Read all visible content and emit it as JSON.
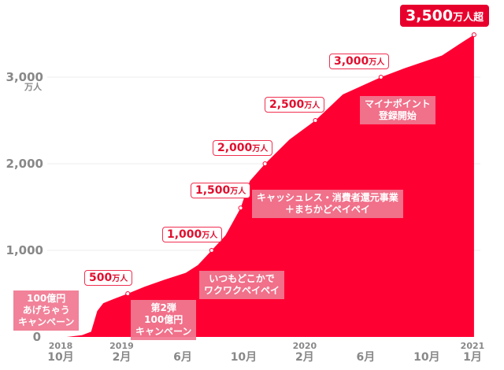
{
  "chart_data": {
    "type": "area",
    "title": "",
    "ylabel": "万人",
    "ylim": [
      0,
      3500
    ],
    "yticks": [
      {
        "v": 0,
        "label": "0"
      },
      {
        "v": 1000,
        "label": "1,000"
      },
      {
        "v": 2000,
        "label": "2,000"
      },
      {
        "v": 3000,
        "label": "3,000"
      }
    ],
    "xticks": [
      {
        "m": 0,
        "year": "2018",
        "label": "10月"
      },
      {
        "m": 4,
        "year": "2019",
        "label": "2月"
      },
      {
        "m": 8,
        "year": "",
        "label": "6月"
      },
      {
        "m": 12,
        "year": "",
        "label": "10月"
      },
      {
        "m": 16,
        "year": "2020",
        "label": "2月"
      },
      {
        "m": 20,
        "year": "",
        "label": "6月"
      },
      {
        "m": 24,
        "year": "",
        "label": "10月"
      },
      {
        "m": 27,
        "year": "2021",
        "label": "1月"
      }
    ],
    "x_unit": "months since Oct 2018",
    "points": [
      [
        0.4,
        0
      ],
      [
        1.4,
        20
      ],
      [
        2.0,
        60
      ],
      [
        2.4,
        300
      ],
      [
        2.8,
        390
      ],
      [
        3.5,
        440
      ],
      [
        4.4,
        500
      ],
      [
        5.5,
        580
      ],
      [
        6.8,
        660
      ],
      [
        8.2,
        740
      ],
      [
        9.0,
        830
      ],
      [
        9.9,
        1000
      ],
      [
        10.8,
        1170
      ],
      [
        11.8,
        1490
      ],
      [
        12.4,
        1800
      ],
      [
        13.4,
        2000
      ],
      [
        15.0,
        2280
      ],
      [
        16.7,
        2500
      ],
      [
        18.5,
        2800
      ],
      [
        21.0,
        3000
      ],
      [
        22.5,
        3100
      ],
      [
        25.0,
        3250
      ],
      [
        26.3,
        3400
      ],
      [
        27.1,
        3490
      ]
    ],
    "milestones": [
      {
        "m": 4.4,
        "v": 500,
        "num": "500",
        "unit": "万人"
      },
      {
        "m": 9.9,
        "v": 1000,
        "num": "1,000",
        "unit": "万人"
      },
      {
        "m": 11.8,
        "v": 1490,
        "num": "1,500",
        "unit": "万人"
      },
      {
        "m": 13.4,
        "v": 2000,
        "num": "2,000",
        "unit": "万人"
      },
      {
        "m": 16.7,
        "v": 2500,
        "num": "2,500",
        "unit": "万人"
      },
      {
        "m": 21.0,
        "v": 3000,
        "num": "3,000",
        "unit": "万人"
      },
      {
        "m": 27.1,
        "v": 3490,
        "num": "3,500",
        "unit": "万人超"
      }
    ],
    "annotations": [
      [
        "100億円",
        "あげちゃう",
        "キャンペーン"
      ],
      [
        "第2弾",
        "100億円",
        "キャンペーン"
      ],
      [
        "いつもどこかで",
        "ワクワクペイペイ"
      ],
      [
        "キャッシュレス・消費者還元事業",
        "＋まちかどペイペイ"
      ],
      [
        "マイナポイント",
        "登録開始"
      ]
    ],
    "colors": {
      "fill": "#ff0033",
      "note": "#f07891",
      "callout": "#e8002d"
    }
  }
}
